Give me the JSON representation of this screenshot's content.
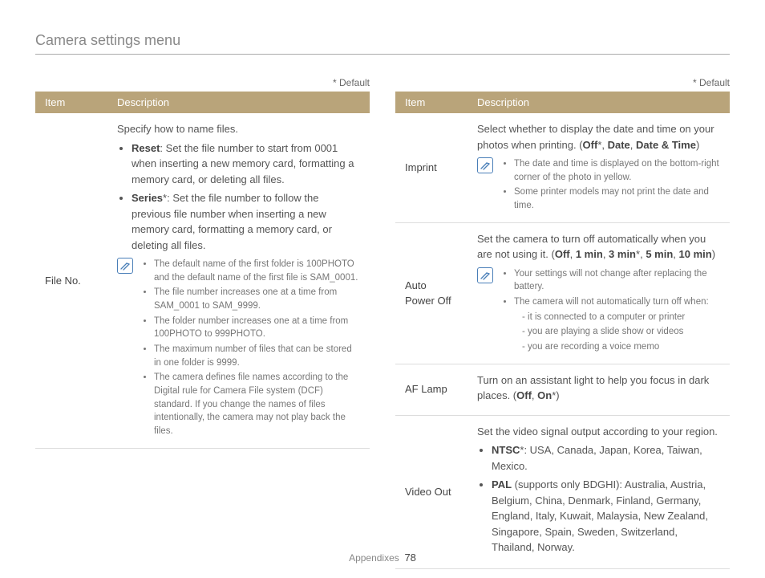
{
  "page": {
    "title": "Camera settings menu",
    "default_label": "* Default",
    "footer_label": "Appendixes",
    "page_number": "78",
    "table_headers": {
      "item": "Item",
      "description": "Description"
    },
    "colors": {
      "header_bg": "#b9a47a",
      "header_text": "#ffffff",
      "body_text": "#555555",
      "muted_text": "#888888",
      "note_text": "#777777",
      "border": "#dddddd",
      "note_icon": "#4a7fb8"
    }
  },
  "left": {
    "rows": [
      {
        "item": "File No.",
        "intro": "Specify how to name files.",
        "options": [
          {
            "label": "Reset",
            "suffix": "",
            "text": ": Set the file number to start from 0001 when inserting a new memory card, formatting a memory card, or deleting all files."
          },
          {
            "label": "Series",
            "suffix": "*",
            "text": ": Set the file number to follow the previous file number when inserting a new memory card, formatting a memory card, or deleting all files."
          }
        ],
        "notes": [
          "The default name of the first folder is 100PHOTO and the default name of the first file is SAM_0001.",
          "The file number increases one at a time from SAM_0001 to SAM_9999.",
          "The folder number increases one at a time from 100PHOTO to 999PHOTO.",
          "The maximum number of files that can be stored in one folder is 9999.",
          "The camera defines file names according to the Digital rule for Camera File system (DCF) standard. If you change the names of files intentionally, the camera may not play back the files."
        ]
      }
    ]
  },
  "right": {
    "rows": [
      {
        "item": "Imprint",
        "intro_pre": "Select whether to display the date and time on your photos when printing. (",
        "values_bold": [
          "Off",
          "Date",
          "Date & Time"
        ],
        "default_index": 0,
        "intro_post": ")",
        "notes": [
          "The date and time is displayed on the bottom-right corner of the photo in yellow.",
          "Some printer models may not print the date and time."
        ]
      },
      {
        "item": "Auto Power Off",
        "intro_pre": "Set the camera to turn off automatically when you are not using it. (",
        "values_bold": [
          "Off",
          "1 min",
          "3 min",
          "5 min",
          "10 min"
        ],
        "default_index": 2,
        "intro_post": ")",
        "notes": [
          "Your settings will not change after replacing the battery.",
          "The camera will not automatically turn off when:"
        ],
        "sub_notes": [
          "it is connected to a computer or printer",
          "you are playing a slide show or videos",
          "you are recording a voice memo"
        ]
      },
      {
        "item": "AF Lamp",
        "intro_pre": "Turn on an assistant light to help you focus in dark places. (",
        "values_bold": [
          "Off",
          "On"
        ],
        "default_index": 1,
        "intro_post": ")"
      },
      {
        "item": "Video Out",
        "intro": "Set the video signal output according to your region.",
        "options": [
          {
            "label": "NTSC",
            "suffix": "*",
            "text": ": USA, Canada, Japan, Korea, Taiwan, Mexico."
          },
          {
            "label": "PAL",
            "suffix": "",
            "text": " (supports only BDGHI): Australia, Austria, Belgium, China, Denmark, Finland, Germany, England, Italy, Kuwait, Malaysia, New Zealand, Singapore, Spain, Sweden, Switzerland, Thailand, Norway."
          }
        ]
      }
    ]
  }
}
